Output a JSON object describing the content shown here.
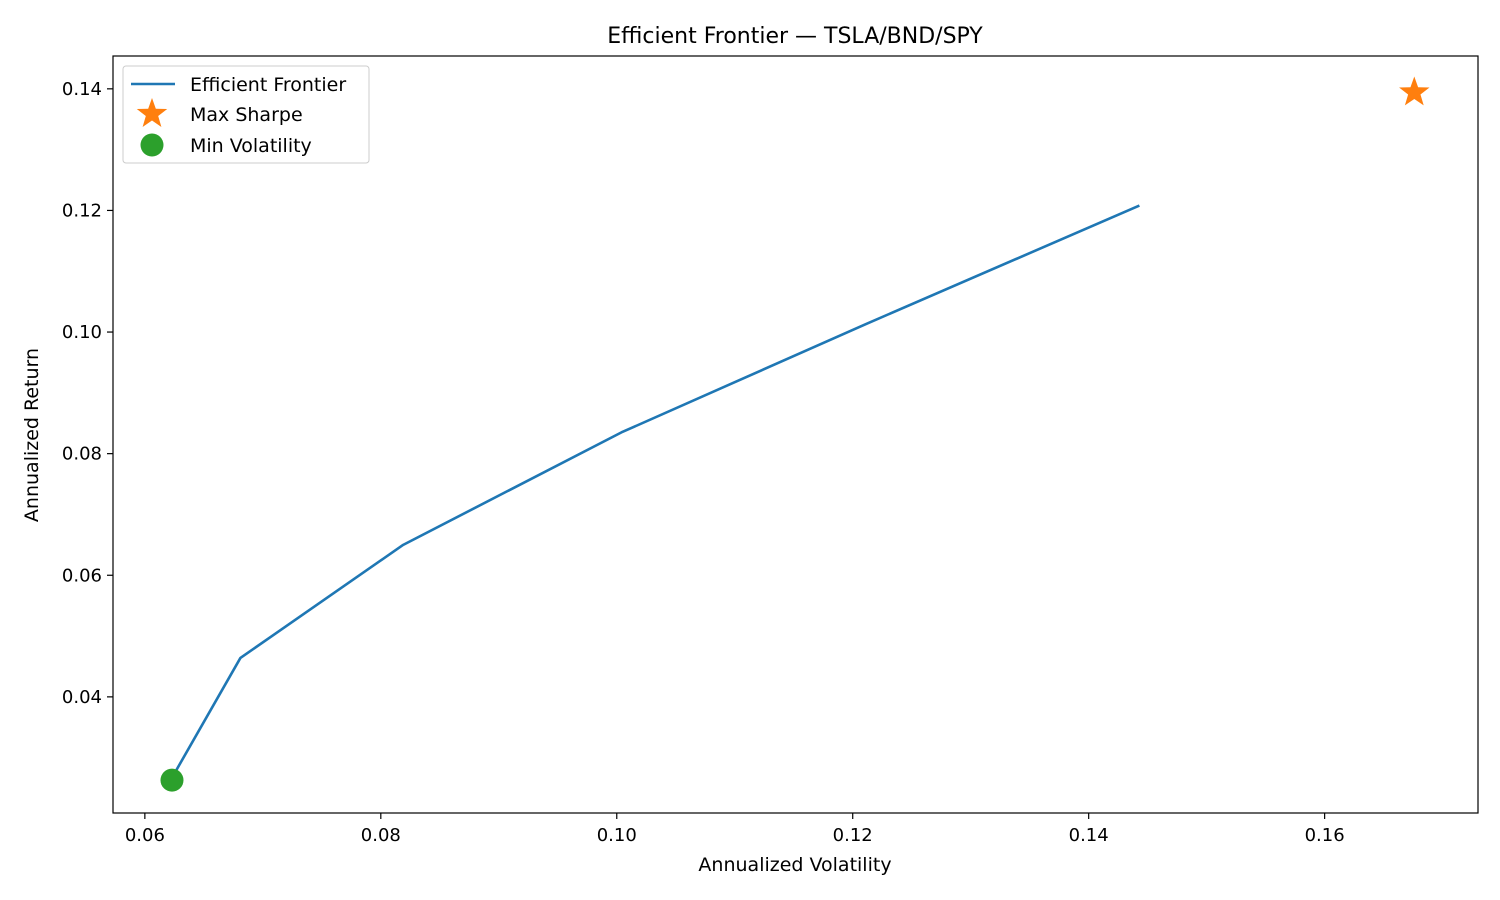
{
  "chart_data": {
    "type": "line",
    "title": "Efficient Frontier — TSLA/BND/SPY",
    "xlabel": "Annualized Volatility",
    "ylabel": "Annualized Return",
    "xlim": [
      0.0573,
      0.173
    ],
    "ylim": [
      0.0209,
      0.1454
    ],
    "xticks": [
      0.06,
      0.08,
      0.1,
      0.12,
      0.14,
      0.16
    ],
    "xtick_labels": [
      "0.06",
      "0.08",
      "0.10",
      "0.12",
      "0.14",
      "0.16"
    ],
    "yticks": [
      0.04,
      0.06,
      0.08,
      0.1,
      0.12,
      0.14
    ],
    "ytick_labels": [
      "0.04",
      "0.06",
      "0.08",
      "0.10",
      "0.12",
      "0.14"
    ],
    "grid": false,
    "legend_position": "top-left",
    "series": [
      {
        "name": "Efficient Frontier",
        "kind": "line",
        "color": "#1f77b4",
        "points": [
          {
            "x": 0.0623,
            "y": 0.0267
          },
          {
            "x": 0.0681,
            "y": 0.0464
          },
          {
            "x": 0.0819,
            "y": 0.065
          },
          {
            "x": 0.1004,
            "y": 0.0835
          },
          {
            "x": 0.1211,
            "y": 0.1013
          },
          {
            "x": 0.1443,
            "y": 0.1208
          }
        ]
      },
      {
        "name": "Max Sharpe",
        "kind": "star",
        "color": "#ff7f0e",
        "points": [
          {
            "x": 0.1676,
            "y": 0.1394
          }
        ]
      },
      {
        "name": "Min Volatility",
        "kind": "circle",
        "color": "#2ca02c",
        "points": [
          {
            "x": 0.0623,
            "y": 0.0263
          }
        ]
      }
    ]
  }
}
